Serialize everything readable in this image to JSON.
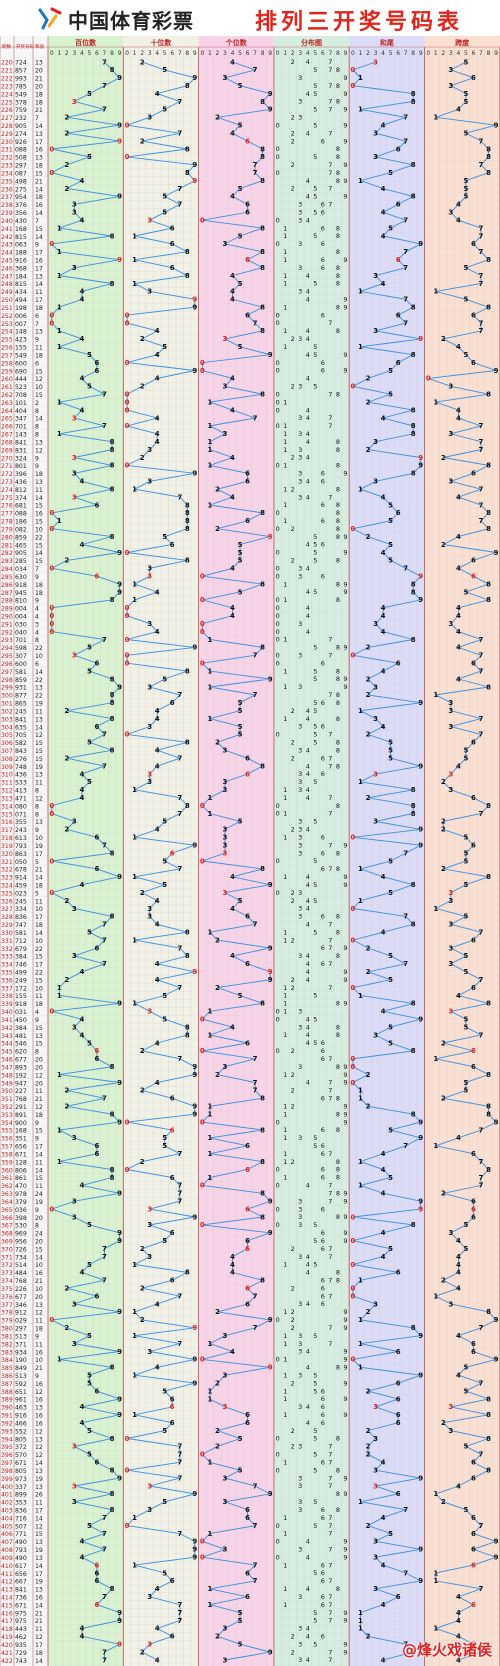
{
  "header": {
    "brand": "中国体育彩票",
    "title": "排列三开奖号码表"
  },
  "watermark": "@烽火戏诸侯",
  "chart_data": {
    "type": "table",
    "columns": [
      "期数",
      "开奖号码",
      "和值"
    ],
    "sections": [
      "百位数",
      "十位数",
      "个位数",
      "分布图",
      "和尾",
      "跨度"
    ],
    "digit_ticks": [
      "0",
      "1",
      "2",
      "3",
      "4",
      "5",
      "6",
      "7",
      "8",
      "9"
    ],
    "section_colors": [
      "#d9f2d0",
      "#f1f1e6",
      "#f9d4e8",
      "#d6eedf",
      "#dcdcf8",
      "#fbe0d2"
    ],
    "line_color": "#3a8fe0",
    "rows": [
      [
        "220",
        "724",
        "13"
      ],
      [
        "221",
        "857",
        "20"
      ],
      [
        "222",
        "993",
        "21"
      ],
      [
        "223",
        "785",
        "20"
      ],
      [
        "224",
        "549",
        "18"
      ],
      [
        "225",
        "378",
        "18"
      ],
      [
        "226",
        "759",
        "21"
      ],
      [
        "227",
        "232",
        "7"
      ],
      [
        "228",
        "905",
        "14"
      ],
      [
        "229",
        "274",
        "13"
      ],
      [
        "230",
        "926",
        "17"
      ],
      [
        "231",
        "088",
        "16"
      ],
      [
        "232",
        "508",
        "13"
      ],
      [
        "233",
        "297",
        "18"
      ],
      [
        "234",
        "087",
        "15"
      ],
      [
        "235",
        "498",
        "21"
      ],
      [
        "236",
        "275",
        "14"
      ],
      [
        "237",
        "954",
        "18"
      ],
      [
        "238",
        "376",
        "16"
      ],
      [
        "239",
        "356",
        "14"
      ],
      [
        "240",
        "430",
        "7"
      ],
      [
        "241",
        "168",
        "15"
      ],
      [
        "242",
        "815",
        "14"
      ],
      [
        "243",
        "063",
        "9"
      ],
      [
        "244",
        "188",
        "17"
      ],
      [
        "245",
        "916",
        "16"
      ],
      [
        "246",
        "368",
        "17"
      ],
      [
        "247",
        "184",
        "13"
      ],
      [
        "248",
        "815",
        "14"
      ],
      [
        "249",
        "434",
        "11"
      ],
      [
        "250",
        "494",
        "17"
      ],
      [
        "251",
        "198",
        "18"
      ],
      [
        "252",
        "006",
        "6"
      ],
      [
        "253",
        "007",
        "7"
      ],
      [
        "254",
        "148",
        "13"
      ],
      [
        "255",
        "423",
        "9"
      ],
      [
        "256",
        "155",
        "11"
      ],
      [
        "257",
        "549",
        "18"
      ],
      [
        "258",
        "600",
        "6"
      ],
      [
        "259",
        "690",
        "15"
      ],
      [
        "260",
        "444",
        "12"
      ],
      [
        "261",
        "523",
        "10"
      ],
      [
        "262",
        "708",
        "15"
      ],
      [
        "263",
        "101",
        "2"
      ],
      [
        "264",
        "404",
        "8"
      ],
      [
        "265",
        "347",
        "14"
      ],
      [
        "266",
        "701",
        "8"
      ],
      [
        "267",
        "143",
        "8"
      ],
      [
        "268",
        "841",
        "13"
      ],
      [
        "269",
        "831",
        "12"
      ],
      [
        "270",
        "324",
        "9"
      ],
      [
        "271",
        "801",
        "9"
      ],
      [
        "272",
        "396",
        "18"
      ],
      [
        "273",
        "436",
        "13"
      ],
      [
        "274",
        "812",
        "11"
      ],
      [
        "275",
        "374",
        "14"
      ],
      [
        "276",
        "681",
        "15"
      ],
      [
        "277",
        "088",
        "16"
      ],
      [
        "278",
        "186",
        "15"
      ],
      [
        "279",
        "082",
        "10"
      ],
      [
        "280",
        "859",
        "22"
      ],
      [
        "281",
        "465",
        "15"
      ],
      [
        "282",
        "905",
        "14"
      ],
      [
        "283",
        "285",
        "15"
      ],
      [
        "284",
        "034",
        "7"
      ],
      [
        "285",
        "630",
        "9"
      ],
      [
        "286",
        "918",
        "18"
      ],
      [
        "287",
        "945",
        "18"
      ],
      [
        "288",
        "810",
        "9"
      ],
      [
        "289",
        "004",
        "4"
      ],
      [
        "290",
        "004",
        "4"
      ],
      [
        "291",
        "030",
        "3"
      ],
      [
        "292",
        "040",
        "4"
      ],
      [
        "293",
        "701",
        "8"
      ],
      [
        "294",
        "598",
        "22"
      ],
      [
        "295",
        "307",
        "10"
      ],
      [
        "296",
        "600",
        "6"
      ],
      [
        "297",
        "581",
        "14"
      ],
      [
        "298",
        "859",
        "22"
      ],
      [
        "299",
        "931",
        "13"
      ],
      [
        "300",
        "877",
        "22"
      ],
      [
        "301",
        "865",
        "19"
      ],
      [
        "302",
        "245",
        "11"
      ],
      [
        "303",
        "841",
        "13"
      ],
      [
        "304",
        "635",
        "14"
      ],
      [
        "305",
        "705",
        "12"
      ],
      [
        "306",
        "582",
        "15"
      ],
      [
        "307",
        "843",
        "15"
      ],
      [
        "308",
        "276",
        "15"
      ],
      [
        "309",
        "748",
        "19"
      ],
      [
        "310",
        "436",
        "13"
      ],
      [
        "311",
        "533",
        "11"
      ],
      [
        "312",
        "413",
        "8"
      ],
      [
        "313",
        "471",
        "12"
      ],
      [
        "314",
        "080",
        "8"
      ],
      [
        "315",
        "071",
        "8"
      ],
      [
        "316",
        "355",
        "13"
      ],
      [
        "317",
        "243",
        "9"
      ],
      [
        "318",
        "613",
        "10"
      ],
      [
        "319",
        "793",
        "19"
      ],
      [
        "320",
        "863",
        "17"
      ],
      [
        "321",
        "050",
        "5"
      ],
      [
        "322",
        "678",
        "21"
      ],
      [
        "323",
        "914",
        "14"
      ],
      [
        "324",
        "459",
        "18"
      ],
      [
        "325",
        "023",
        "5"
      ],
      [
        "326",
        "245",
        "11"
      ],
      [
        "327",
        "334",
        "10"
      ],
      [
        "328",
        "836",
        "17"
      ],
      [
        "329",
        "747",
        "18"
      ],
      [
        "330",
        "581",
        "14"
      ],
      [
        "331",
        "712",
        "10"
      ],
      [
        "332",
        "679",
        "22"
      ],
      [
        "333",
        "384",
        "15"
      ],
      [
        "334",
        "746",
        "17"
      ],
      [
        "335",
        "499",
        "22"
      ],
      [
        "336",
        "249",
        "15"
      ],
      [
        "337",
        "172",
        "10"
      ],
      [
        "338",
        "155",
        "11"
      ],
      [
        "339",
        "918",
        "18"
      ],
      [
        "340",
        "031",
        "4"
      ],
      [
        "341",
        "450",
        "9"
      ],
      [
        "342",
        "384",
        "15"
      ],
      [
        "343",
        "481",
        "13"
      ],
      [
        "344",
        "546",
        "15"
      ],
      [
        "345",
        "620",
        "8"
      ],
      [
        "346",
        "677",
        "20"
      ],
      [
        "347",
        "893",
        "20"
      ],
      [
        "348",
        "192",
        "12"
      ],
      [
        "349",
        "947",
        "20"
      ],
      [
        "350",
        "227",
        "11"
      ],
      [
        "351",
        "768",
        "21"
      ],
      [
        "352",
        "291",
        "12"
      ],
      [
        "353",
        "891",
        "18"
      ],
      [
        "354",
        "900",
        "9"
      ],
      [
        "355",
        "168",
        "15"
      ],
      [
        "356",
        "351",
        "9"
      ],
      [
        "357",
        "656",
        "17"
      ],
      [
        "358",
        "671",
        "14"
      ],
      [
        "359",
        "128",
        "11"
      ],
      [
        "360",
        "806",
        "14"
      ],
      [
        "361",
        "861",
        "15"
      ],
      [
        "362",
        "470",
        "11"
      ],
      [
        "363",
        "978",
        "24"
      ],
      [
        "364",
        "379",
        "19"
      ],
      [
        "365",
        "036",
        "9"
      ],
      [
        "366",
        "398",
        "20"
      ],
      [
        "367",
        "530",
        "8"
      ],
      [
        "368",
        "969",
        "24"
      ],
      [
        "369",
        "956",
        "20"
      ],
      [
        "370",
        "726",
        "15"
      ],
      [
        "371",
        "734",
        "14"
      ],
      [
        "372",
        "514",
        "10"
      ],
      [
        "373",
        "484",
        "16"
      ],
      [
        "374",
        "768",
        "21"
      ],
      [
        "375",
        "226",
        "10"
      ],
      [
        "376",
        "677",
        "20"
      ],
      [
        "377",
        "346",
        "13"
      ],
      [
        "378",
        "912",
        "12"
      ],
      [
        "379",
        "029",
        "11"
      ],
      [
        "380",
        "297",
        "18"
      ],
      [
        "381",
        "513",
        "9"
      ],
      [
        "382",
        "371",
        "11"
      ],
      [
        "383",
        "934",
        "16"
      ],
      [
        "384",
        "190",
        "10"
      ],
      [
        "385",
        "849",
        "21"
      ],
      [
        "386",
        "513",
        "9"
      ],
      [
        "387",
        "592",
        "16"
      ],
      [
        "388",
        "651",
        "12"
      ],
      [
        "389",
        "961",
        "16"
      ],
      [
        "390",
        "463",
        "13"
      ],
      [
        "391",
        "916",
        "16"
      ],
      [
        "392",
        "466",
        "16"
      ],
      [
        "393",
        "552",
        "12"
      ],
      [
        "394",
        "805",
        "13"
      ],
      [
        "395",
        "372",
        "12"
      ],
      [
        "396",
        "570",
        "12"
      ],
      [
        "397",
        "671",
        "14"
      ],
      [
        "398",
        "805",
        "13"
      ],
      [
        "399",
        "973",
        "19"
      ],
      [
        "400",
        "337",
        "13"
      ],
      [
        "401",
        "899",
        "26"
      ],
      [
        "402",
        "353",
        "11"
      ],
      [
        "403",
        "836",
        "17"
      ],
      [
        "404",
        "716",
        "14"
      ],
      [
        "405",
        "507",
        "12"
      ],
      [
        "406",
        "771",
        "15"
      ],
      [
        "407",
        "490",
        "13"
      ],
      [
        "408",
        "793",
        "19"
      ],
      [
        "409",
        "490",
        "13"
      ],
      [
        "410",
        "617",
        "14"
      ],
      [
        "411",
        "656",
        "17"
      ],
      [
        "412",
        "667",
        "19"
      ],
      [
        "413",
        "841",
        "13"
      ],
      [
        "414",
        "736",
        "16"
      ],
      [
        "415",
        "671",
        "14"
      ],
      [
        "416",
        "975",
        "21"
      ],
      [
        "417",
        "975",
        "21"
      ],
      [
        "418",
        "443",
        "11"
      ],
      [
        "419",
        "462",
        "12"
      ],
      [
        "420",
        "935",
        "17"
      ],
      [
        "421",
        "729",
        "18"
      ],
      [
        "422",
        "743",
        "14"
      ]
    ]
  }
}
